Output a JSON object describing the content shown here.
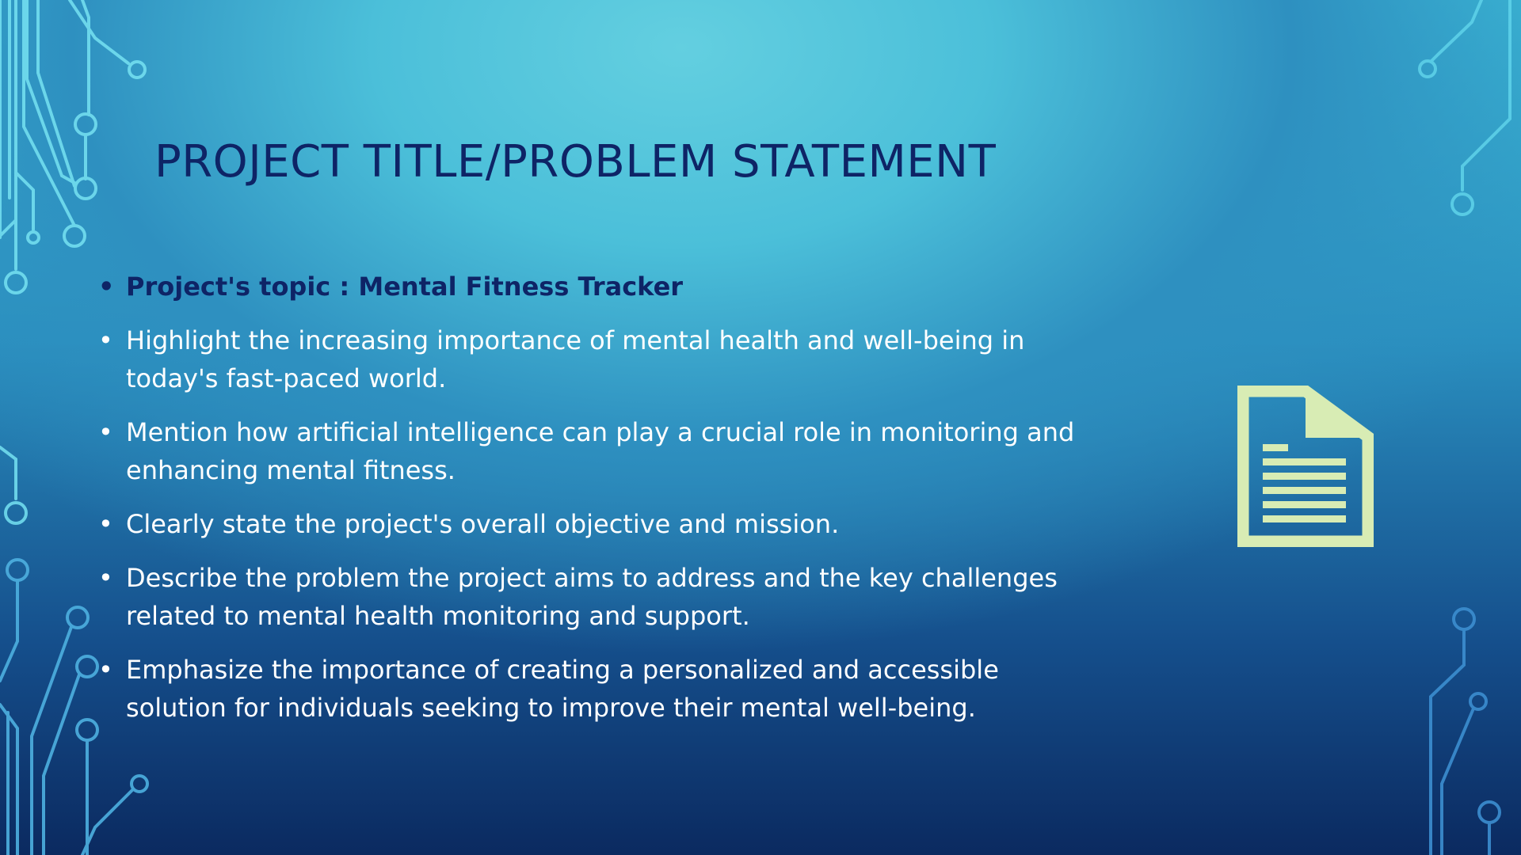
{
  "slide": {
    "title": "PROJECT TITLE/PROBLEM STATEMENT",
    "bullets": [
      {
        "text": "Project's topic : Mental Fitness Tracker",
        "emphasis": true
      },
      {
        "text": "Highlight the increasing importance of mental health and well-being in today's fast-paced world.",
        "emphasis": false
      },
      {
        "text": "Mention how artificial intelligence can play a crucial role in monitoring and enhancing mental fitness.",
        "emphasis": false
      },
      {
        "text": "Clearly state the project's overall objective and mission.",
        "emphasis": false
      },
      {
        "text": "Describe the problem the project aims to address and the key challenges related to mental health monitoring and support.",
        "emphasis": false
      },
      {
        "text": "Emphasize the importance of creating a personalized and accessible solution for individuals seeking to improve their mental well-being.",
        "emphasis": false
      }
    ],
    "bullet_glyph": "•",
    "icon": "document-icon"
  },
  "colors": {
    "title": "#0e2466",
    "body_text": "#ffffff",
    "icon": "#d8ecb4",
    "circuit_light": "#7ee8f5",
    "circuit_dark": "#4aa6dc"
  }
}
